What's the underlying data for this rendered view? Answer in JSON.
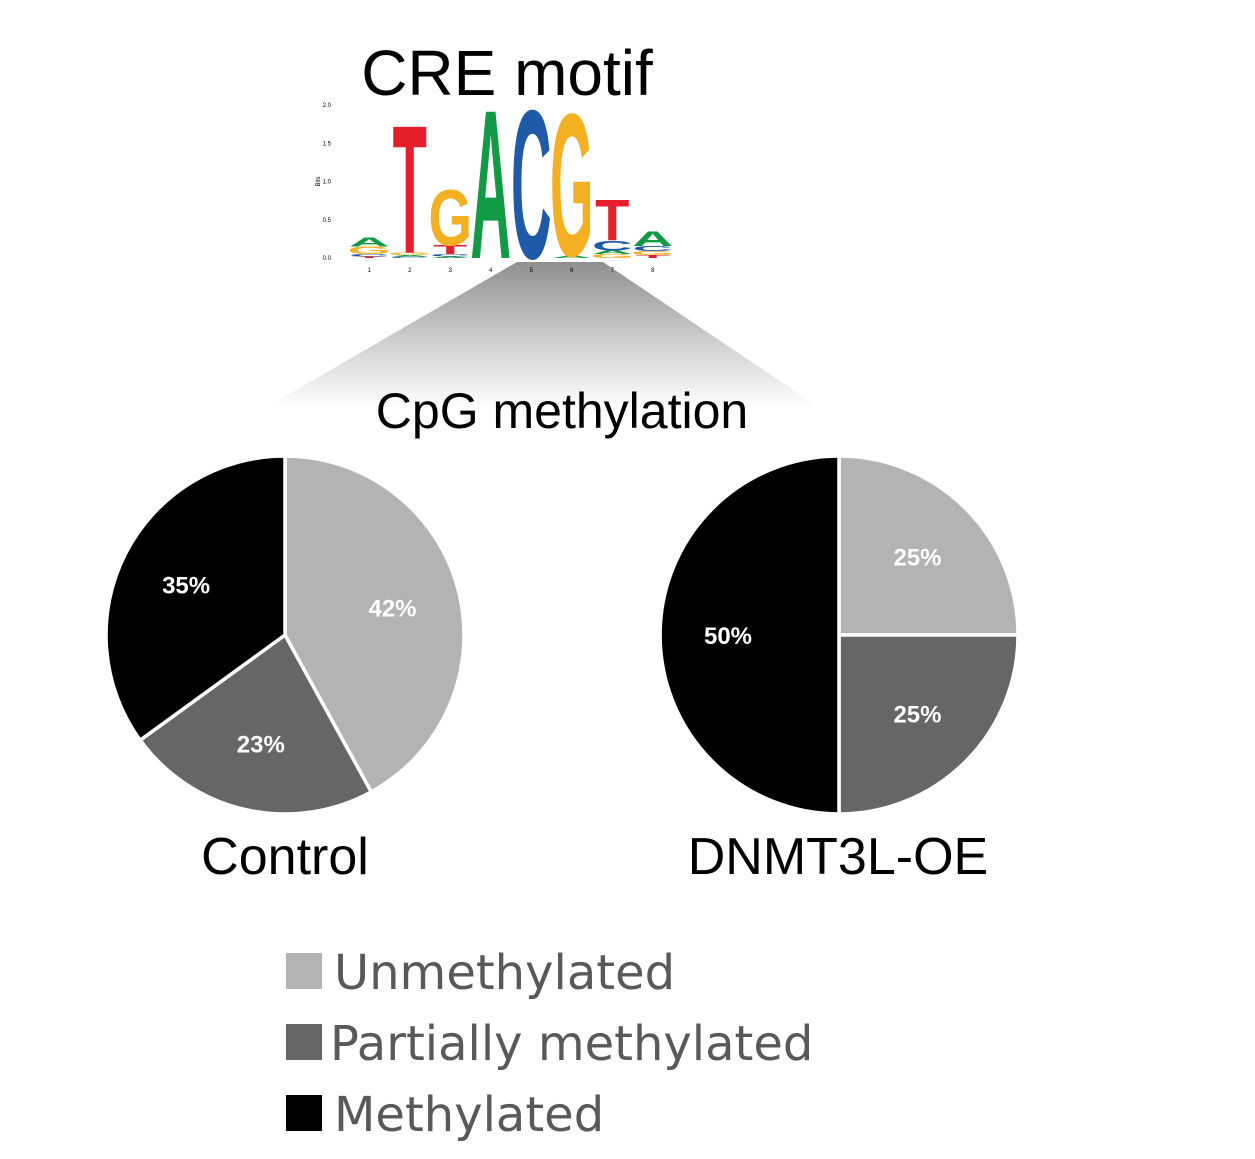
{
  "motif": {
    "title": "CRE motif",
    "y_axis_label": "Bits",
    "y_ticks": [
      "0.0",
      "0.5",
      "1.0",
      "1.5",
      "2.0"
    ],
    "positions": [
      "1",
      "2",
      "3",
      "4",
      "5",
      "6",
      "7",
      "8"
    ],
    "columns": [
      {
        "position": "1",
        "letters": [
          {
            "base": "A",
            "bits": 0.12
          },
          {
            "base": "G",
            "bits": 0.1
          },
          {
            "base": "C",
            "bits": 0.03
          },
          {
            "base": "T",
            "bits": 0.02
          }
        ]
      },
      {
        "position": "2",
        "letters": [
          {
            "base": "T",
            "bits": 1.72
          },
          {
            "base": "G",
            "bits": 0.03
          },
          {
            "base": "C",
            "bits": 0.02
          },
          {
            "base": "A",
            "bits": 0.02
          }
        ]
      },
      {
        "position": "3",
        "letters": [
          {
            "base": "G",
            "bits": 0.75
          },
          {
            "base": "T",
            "bits": 0.12
          },
          {
            "base": "C",
            "bits": 0.03
          },
          {
            "base": "A",
            "bits": 0.02
          }
        ]
      },
      {
        "position": "4",
        "letters": [
          {
            "base": "A",
            "bits": 2.0
          }
        ]
      },
      {
        "position": "5",
        "letters": [
          {
            "base": "C",
            "bits": 2.0
          }
        ]
      },
      {
        "position": "6",
        "letters": [
          {
            "base": "G",
            "bits": 1.92
          },
          {
            "base": "A",
            "bits": 0.03
          }
        ]
      },
      {
        "position": "7",
        "letters": [
          {
            "base": "T",
            "bits": 0.55
          },
          {
            "base": "C",
            "bits": 0.13
          },
          {
            "base": "G",
            "bits": 0.05
          },
          {
            "base": "A",
            "bits": 0.05
          }
        ]
      },
      {
        "position": "8",
        "letters": [
          {
            "base": "A",
            "bits": 0.2
          },
          {
            "base": "C",
            "bits": 0.07
          },
          {
            "base": "G",
            "bits": 0.05
          },
          {
            "base": "T",
            "bits": 0.04
          }
        ]
      }
    ],
    "base_colors": {
      "A": "#129a44",
      "C": "#1f5aa8",
      "G": "#f4b023",
      "T": "#e41e2b"
    }
  },
  "section_title": "CpG methylation",
  "chart_data": [
    {
      "type": "pie",
      "title": "Control",
      "slices": [
        {
          "label": "Unmethylated",
          "value": 42,
          "display": "42%",
          "color": "#b3b3b3"
        },
        {
          "label": "Partially methylated",
          "value": 23,
          "display": "23%",
          "color": "#666666"
        },
        {
          "label": "Methylated",
          "value": 35,
          "display": "35%",
          "color": "#000000"
        }
      ]
    },
    {
      "type": "pie",
      "title": "DNMT3L-OE",
      "slices": [
        {
          "label": "Unmethylated",
          "value": 25,
          "display": "25%",
          "color": "#b3b3b3"
        },
        {
          "label": "Partially methylated",
          "value": 25,
          "display": "25%",
          "color": "#666666"
        },
        {
          "label": "Methylated",
          "value": 50,
          "display": "50%",
          "color": "#000000"
        }
      ]
    }
  ],
  "legend": {
    "placement": "bottom-center",
    "items": [
      {
        "label": "Unmethylated",
        "color": "#b3b3b3"
      },
      {
        "label": "Partially methylated",
        "color": "#666666"
      },
      {
        "label": "Methylated",
        "color": "#000000"
      }
    ]
  },
  "colors": {
    "label_text": "#ffffff",
    "legend_text": "#58595b",
    "title_text": "#000000"
  }
}
